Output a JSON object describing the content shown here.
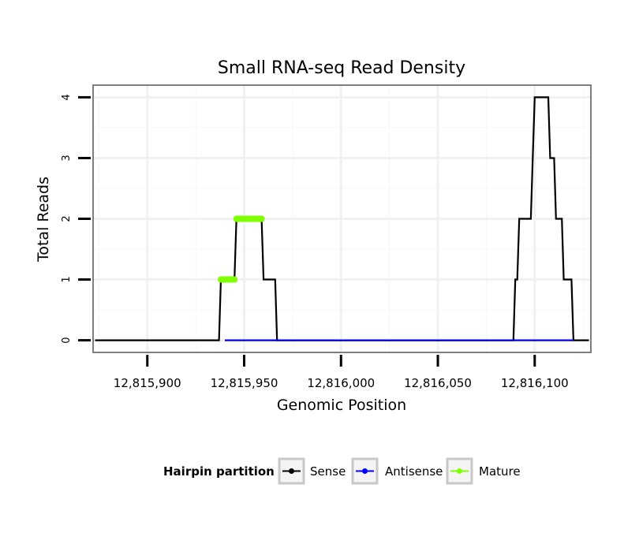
{
  "chart_data": {
    "type": "line",
    "title": "Small RNA-seq Read Density",
    "xlabel": "Genomic Position",
    "ylabel": "Total Reads",
    "xlim": [
      12815872,
      12816129
    ],
    "ylim": [
      -0.2,
      4.2
    ],
    "grid": true,
    "x_ticks": [
      {
        "value": 12815900,
        "label": "12,815,900"
      },
      {
        "value": 12815950,
        "label": "12,815,950"
      },
      {
        "value": 12816000,
        "label": "12,816,000"
      },
      {
        "value": 12816050,
        "label": "12,816,050"
      },
      {
        "value": 12816100,
        "label": "12,816,100"
      }
    ],
    "y_ticks": [
      {
        "value": 0,
        "label": "0"
      },
      {
        "value": 1,
        "label": "1"
      },
      {
        "value": 2,
        "label": "2"
      },
      {
        "value": 3,
        "label": "3"
      },
      {
        "value": 4,
        "label": "4"
      }
    ],
    "legend": {
      "title": "Hairpin partition",
      "position": "bottom",
      "entries": [
        "Sense",
        "Antisense",
        "Mature"
      ]
    },
    "series": [
      {
        "name": "Sense",
        "color": "#000000",
        "points": [
          [
            12815873,
            0
          ],
          [
            12815937,
            0
          ],
          [
            12815938,
            1
          ],
          [
            12815945,
            1
          ],
          [
            12815946,
            2
          ],
          [
            12815959,
            2
          ],
          [
            12815960,
            1
          ],
          [
            12815966,
            1
          ],
          [
            12815967,
            0
          ],
          [
            12816089,
            0
          ],
          [
            12816090,
            1
          ],
          [
            12816091,
            1
          ],
          [
            12816092,
            2
          ],
          [
            12816098,
            2
          ],
          [
            12816099,
            3
          ],
          [
            12816100,
            4
          ],
          [
            12816107,
            4
          ],
          [
            12816108,
            3
          ],
          [
            12816110,
            3
          ],
          [
            12816111,
            2
          ],
          [
            12816114,
            2
          ],
          [
            12816115,
            1
          ],
          [
            12816119,
            1
          ],
          [
            12816120,
            0
          ],
          [
            12816128,
            0
          ]
        ]
      },
      {
        "name": "Antisense",
        "color": "#0000ff",
        "points": [
          [
            12815940,
            0
          ],
          [
            12815965,
            0
          ],
          [
            12816092,
            0
          ],
          [
            12816120,
            0
          ]
        ]
      },
      {
        "name": "Mature",
        "color": "#7fff00",
        "segments": [
          {
            "x": [
              12815938,
              12815945
            ],
            "y": 1
          },
          {
            "x": [
              12815946,
              12815959
            ],
            "y": 2
          }
        ]
      }
    ]
  }
}
